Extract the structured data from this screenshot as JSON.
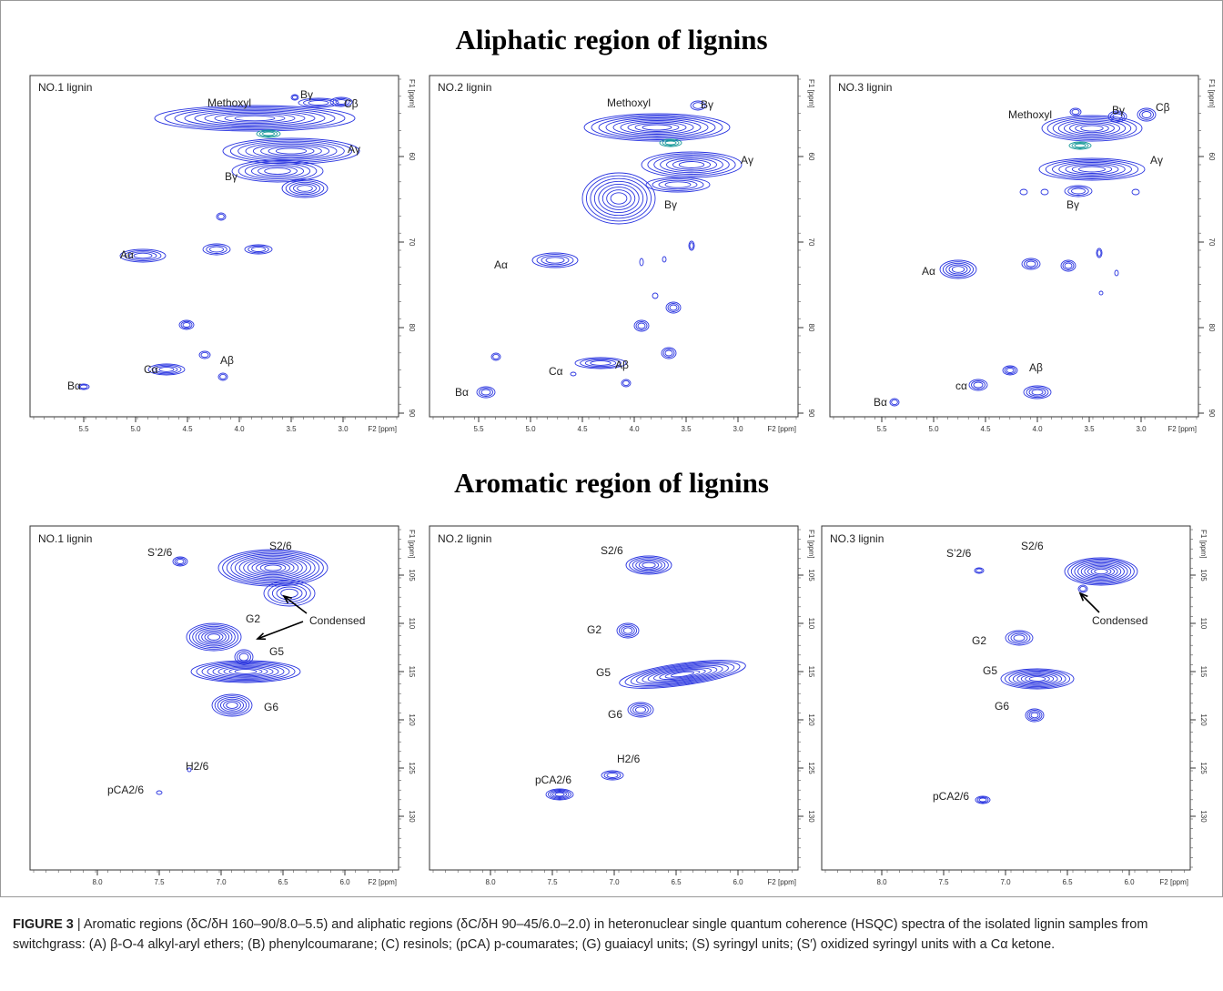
{
  "figure": {
    "sections": [
      {
        "title": "Aliphatic region of lignins",
        "x_ticks": [
          "5.5",
          "5.0",
          "4.5",
          "4.0",
          "3.5",
          "3.0"
        ],
        "y_ticks": [
          "60",
          "70",
          "80",
          "90"
        ],
        "panels": [
          {
            "name": "NO.1 lignin",
            "peaks": [
              "Methoxyl",
              "Bγ",
              "Cβ",
              "Aγ",
              "Bγ",
              "Aα",
              "Cα",
              "Aβ",
              "Bα"
            ]
          },
          {
            "name": "NO.2 lignin",
            "peaks": [
              "Methoxyl",
              "Bγ",
              "Aγ",
              "Bγ",
              "Aα",
              "Cα",
              "Aβ",
              "Bα"
            ]
          },
          {
            "name": "NO.3 lignin",
            "peaks": [
              "Methoxyl",
              "Bγ",
              "Cβ",
              "Aγ",
              "Bγ",
              "Aα",
              "cα",
              "Aβ",
              "Bα"
            ]
          }
        ]
      },
      {
        "title": "Aromatic region of lignins",
        "x_ticks": [
          "8.0",
          "7.5",
          "7.0",
          "6.5",
          "6.0"
        ],
        "y_ticks": [
          "105",
          "110",
          "115",
          "120",
          "125",
          "130"
        ],
        "panels": [
          {
            "name": "NO.1 lignin",
            "peaks": [
              "S2/6",
              "S’2/6",
              "Condensed",
              "G2",
              "G5",
              "G6",
              "H2/6",
              "pCA2/6"
            ]
          },
          {
            "name": "NO.2 lignin",
            "peaks": [
              "S2/6",
              "G2",
              "G5",
              "G6",
              "H2/6",
              "pCA2/6"
            ]
          },
          {
            "name": "NO.3 lignin",
            "peaks": [
              "S2/6",
              "S’2/6",
              "Condensed",
              "G2",
              "G5",
              "G6",
              "pCA2/6"
            ]
          }
        ]
      }
    ],
    "x_axis_label": "F2 [ppm]",
    "y_axis_label": "F1 [ppm]",
    "caption": {
      "label": "FIGURE 3",
      "text": "| Aromatic regions (δC/δH 160–90/8.0–5.5) and aliphatic regions (δC/δH 90–45/6.0–2.0) in heteronuclear single quantum coherence (HSQC) spectra of the isolated lignin samples from switchgrass: (A) β-O-4 alkyl-aryl ethers; (B) phenylcoumarane; (C) resinols; (pCA) p-coumarates; (G) guaiacyl units; (S) syringyl units; (S′) oxidized syringyl units with a Cα ketone."
    }
  }
}
